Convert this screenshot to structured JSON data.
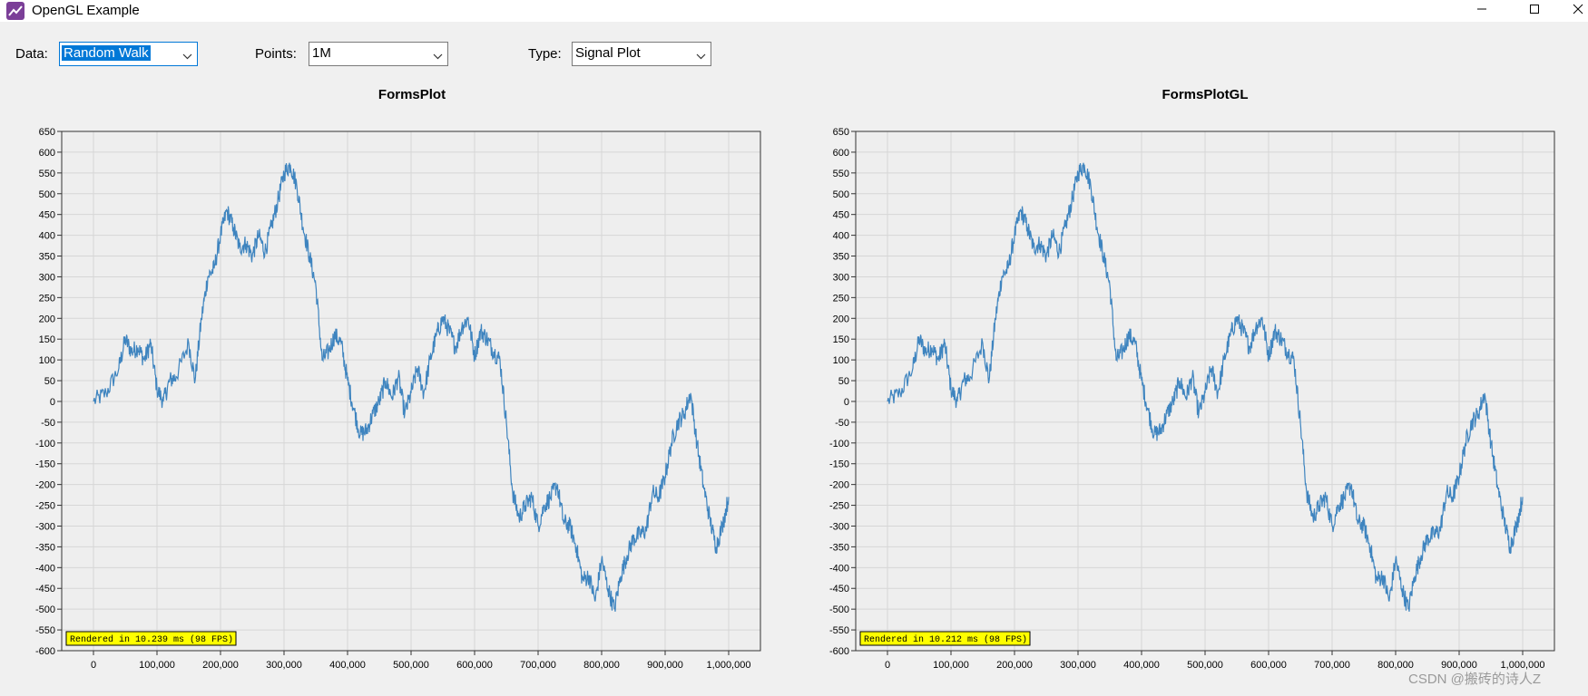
{
  "window": {
    "title": "OpenGL Example",
    "app_icon": "chart-line-icon",
    "controls": [
      "minimize-icon",
      "maximize-icon",
      "close-icon"
    ]
  },
  "toolbar": {
    "data_label": "Data:",
    "data_value": "Random Walk",
    "points_label": "Points:",
    "points_value": "1M",
    "type_label": "Type:",
    "type_value": "Signal Plot"
  },
  "plots": [
    {
      "title": "FormsPlot",
      "benchmark": "Rendered in 10.239 ms (98 FPS)"
    },
    {
      "title": "FormsPlotGL",
      "benchmark": "Rendered in 10.212 ms (98 FPS)"
    }
  ],
  "watermark": "CSDN @搬砖的诗人Z",
  "colors": {
    "series": "#3e84bf",
    "plot_background": "#eeeeee",
    "benchmark_background": "#ffff00",
    "selection": "#0078d7"
  },
  "chart_data": [
    {
      "type": "line",
      "title": "FormsPlot",
      "xlim": [
        -50000,
        1050000
      ],
      "ylim": [
        -600,
        650
      ],
      "x_ticks": [
        "0",
        "100,000",
        "200,000",
        "300,000",
        "400,000",
        "500,000",
        "600,000",
        "700,000",
        "800,000",
        "900,000",
        "1,000,000"
      ],
      "y_ticks": [
        "650",
        "600",
        "550",
        "500",
        "450",
        "400",
        "350",
        "300",
        "250",
        "200",
        "150",
        "100",
        "50",
        "0",
        "-50",
        "-100",
        "-150",
        "-200",
        "-250",
        "-300",
        "-350",
        "-400",
        "-450",
        "-500",
        "-550",
        "-600"
      ],
      "grid": true,
      "series": [
        {
          "x": [
            0,
            20000,
            40000,
            50000,
            60000,
            70000,
            80000,
            90000,
            100000,
            110000,
            120000,
            130000,
            150000,
            160000,
            170000,
            180000,
            190000,
            200000,
            210000,
            220000,
            230000,
            240000,
            250000,
            260000,
            270000,
            280000,
            290000,
            300000,
            310000,
            320000,
            330000,
            340000,
            350000,
            360000,
            370000,
            380000,
            390000,
            400000,
            410000,
            420000,
            430000,
            440000,
            450000,
            460000,
            470000,
            480000,
            490000,
            500000,
            510000,
            520000,
            530000,
            540000,
            550000,
            560000,
            570000,
            580000,
            590000,
            600000,
            610000,
            620000,
            630000,
            640000,
            650000,
            660000,
            670000,
            680000,
            690000,
            700000,
            710000,
            720000,
            730000,
            740000,
            750000,
            760000,
            770000,
            780000,
            790000,
            800000,
            810000,
            820000,
            830000,
            840000,
            850000,
            860000,
            870000,
            880000,
            890000,
            900000,
            910000,
            920000,
            930000,
            940000,
            950000,
            960000,
            970000,
            980000,
            990000,
            1000000
          ],
          "values": [
            0,
            20,
            80,
            150,
            120,
            130,
            100,
            140,
            30,
            0,
            50,
            60,
            140,
            50,
            200,
            300,
            320,
            400,
            460,
            420,
            370,
            380,
            350,
            400,
            360,
            420,
            480,
            550,
            570,
            520,
            420,
            350,
            280,
            100,
            120,
            160,
            140,
            50,
            -20,
            -80,
            -70,
            -30,
            0,
            50,
            10,
            60,
            -30,
            20,
            80,
            20,
            100,
            160,
            200,
            170,
            130,
            180,
            200,
            110,
            170,
            150,
            120,
            100,
            -50,
            -220,
            -280,
            -250,
            -230,
            -300,
            -250,
            -230,
            -200,
            -290,
            -300,
            -350,
            -430,
            -420,
            -480,
            -380,
            -450,
            -500,
            -420,
            -370,
            -330,
            -320,
            -310,
            -220,
            -230,
            -180,
            -100,
            -50,
            -30,
            20,
            -100,
            -200,
            -280,
            -350,
            -300,
            -230
          ]
        }
      ]
    },
    {
      "type": "line",
      "title": "FormsPlotGL",
      "xlim": [
        -50000,
        1050000
      ],
      "ylim": [
        -600,
        650
      ],
      "x_ticks": [
        "0",
        "100,000",
        "200,000",
        "300,000",
        "400,000",
        "500,000",
        "600,000",
        "700,000",
        "800,000",
        "900,000",
        "1,000,000"
      ],
      "y_ticks": [
        "650",
        "600",
        "550",
        "500",
        "450",
        "400",
        "350",
        "300",
        "250",
        "200",
        "150",
        "100",
        "50",
        "0",
        "-50",
        "-100",
        "-150",
        "-200",
        "-250",
        "-300",
        "-350",
        "-400",
        "-450",
        "-500",
        "-550",
        "-600"
      ],
      "grid": true,
      "series": [
        {
          "x": [
            0,
            20000,
            40000,
            50000,
            60000,
            70000,
            80000,
            90000,
            100000,
            110000,
            120000,
            130000,
            150000,
            160000,
            170000,
            180000,
            190000,
            200000,
            210000,
            220000,
            230000,
            240000,
            250000,
            260000,
            270000,
            280000,
            290000,
            300000,
            310000,
            320000,
            330000,
            340000,
            350000,
            360000,
            370000,
            380000,
            390000,
            400000,
            410000,
            420000,
            430000,
            440000,
            450000,
            460000,
            470000,
            480000,
            490000,
            500000,
            510000,
            520000,
            530000,
            540000,
            550000,
            560000,
            570000,
            580000,
            590000,
            600000,
            610000,
            620000,
            630000,
            640000,
            650000,
            660000,
            670000,
            680000,
            690000,
            700000,
            710000,
            720000,
            730000,
            740000,
            750000,
            760000,
            770000,
            780000,
            790000,
            800000,
            810000,
            820000,
            830000,
            840000,
            850000,
            860000,
            870000,
            880000,
            890000,
            900000,
            910000,
            920000,
            930000,
            940000,
            950000,
            960000,
            970000,
            980000,
            990000,
            1000000
          ],
          "values": [
            0,
            20,
            80,
            150,
            120,
            130,
            100,
            140,
            30,
            0,
            50,
            60,
            140,
            50,
            200,
            300,
            320,
            400,
            460,
            420,
            370,
            380,
            350,
            400,
            360,
            420,
            480,
            550,
            570,
            520,
            420,
            350,
            280,
            100,
            120,
            160,
            140,
            50,
            -20,
            -80,
            -70,
            -30,
            0,
            50,
            10,
            60,
            -30,
            20,
            80,
            20,
            100,
            160,
            200,
            170,
            130,
            180,
            200,
            110,
            170,
            150,
            120,
            100,
            -50,
            -220,
            -280,
            -250,
            -230,
            -300,
            -250,
            -230,
            -200,
            -290,
            -300,
            -350,
            -430,
            -420,
            -480,
            -380,
            -450,
            -500,
            -420,
            -370,
            -330,
            -320,
            -310,
            -220,
            -230,
            -180,
            -100,
            -50,
            -30,
            20,
            -100,
            -200,
            -280,
            -350,
            -300,
            -230
          ]
        }
      ]
    }
  ]
}
